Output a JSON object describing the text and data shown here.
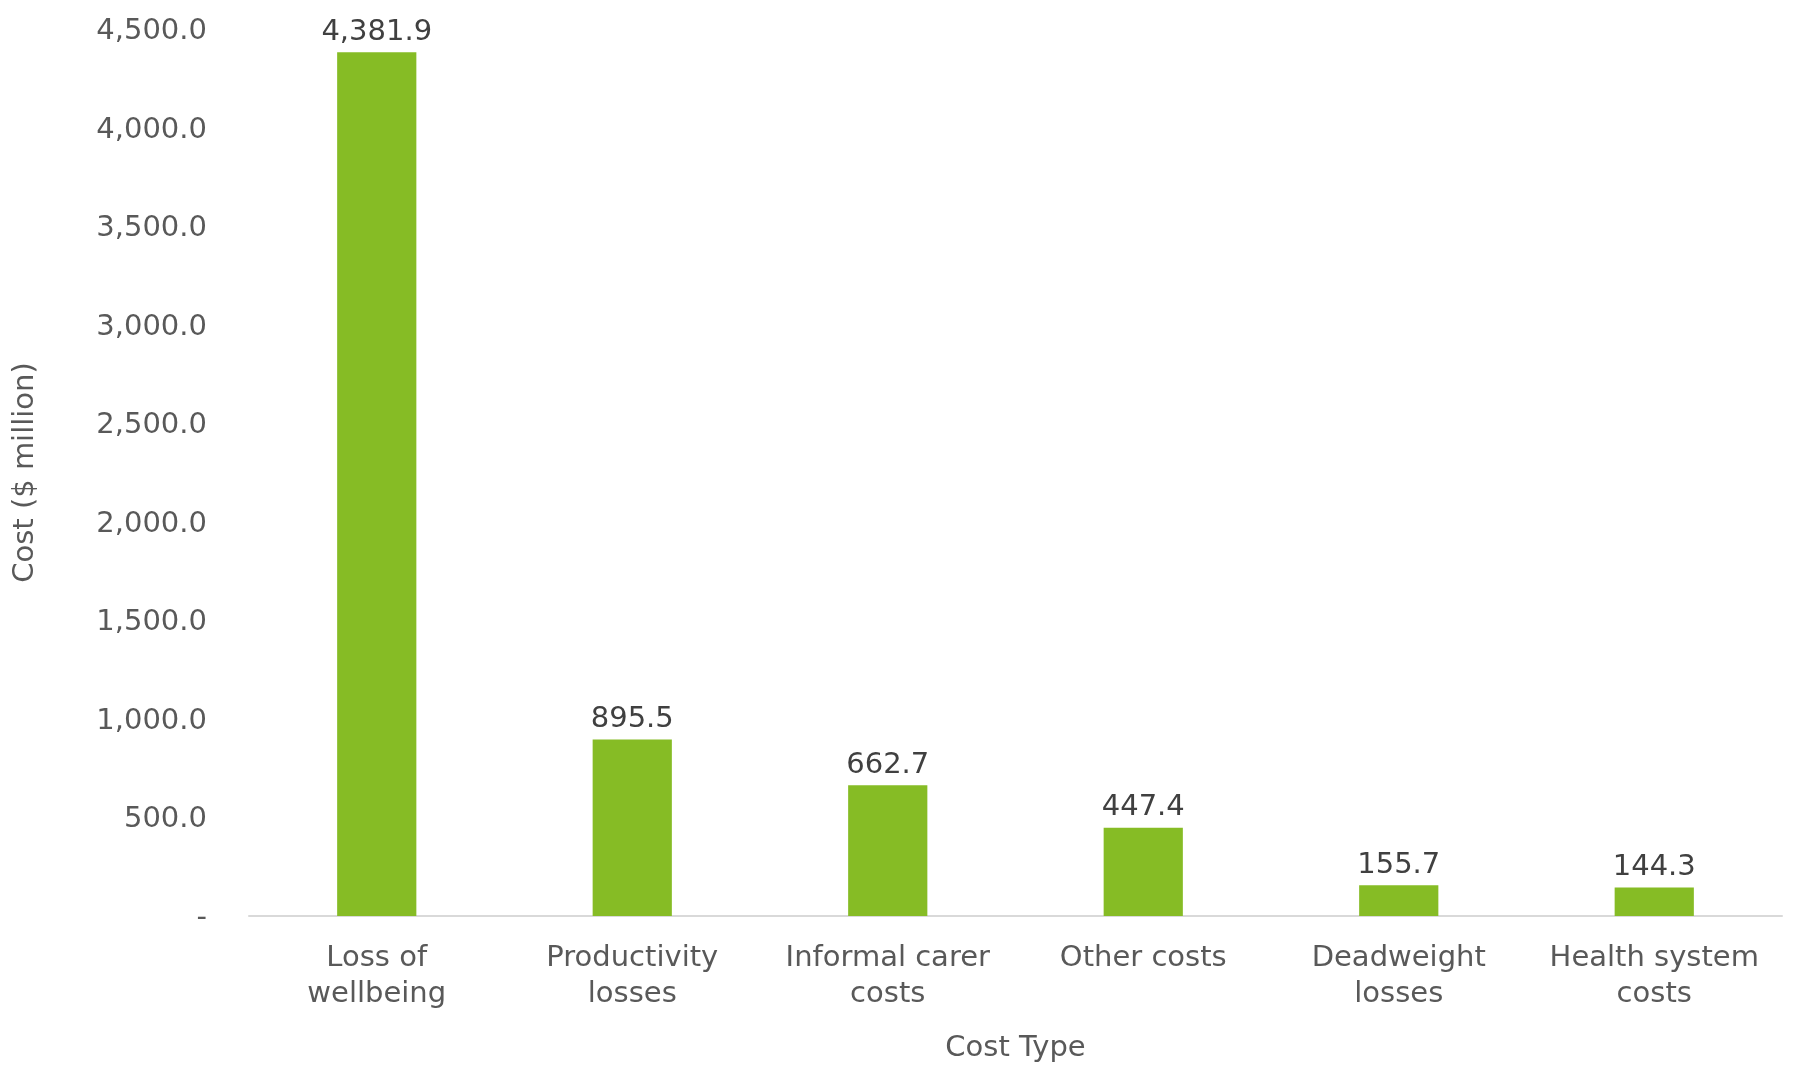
{
  "chart_data": {
    "type": "bar",
    "xlabel": "Cost Type",
    "ylabel": "Cost ($ million)",
    "categories": [
      "Loss of wellbeing",
      "Productivity losses",
      "Informal carer costs",
      "Other costs",
      "Deadweight losses",
      "Health system costs"
    ],
    "values": [
      4381.9,
      895.5,
      662.7,
      447.4,
      155.7,
      144.3
    ],
    "color": "#86bc25",
    "ylim": [
      0,
      4500
    ],
    "yticks": [
      {
        "value": 0,
        "label": "-"
      },
      {
        "value": 500,
        "label": "500.0"
      },
      {
        "value": 1000,
        "label": "1,000.0"
      },
      {
        "value": 1500,
        "label": "1,500.0"
      },
      {
        "value": 2000,
        "label": "2,000.0"
      },
      {
        "value": 2500,
        "label": "2,500.0"
      },
      {
        "value": 3000,
        "label": "3,000.0"
      },
      {
        "value": 3500,
        "label": "3,500.0"
      },
      {
        "value": 4000,
        "label": "4,000.0"
      },
      {
        "value": 4500,
        "label": "4,500.0"
      }
    ],
    "value_labels": [
      "4,381.9",
      "895.5",
      "662.7",
      "447.4",
      "155.7",
      "144.3"
    ],
    "grid": false
  }
}
